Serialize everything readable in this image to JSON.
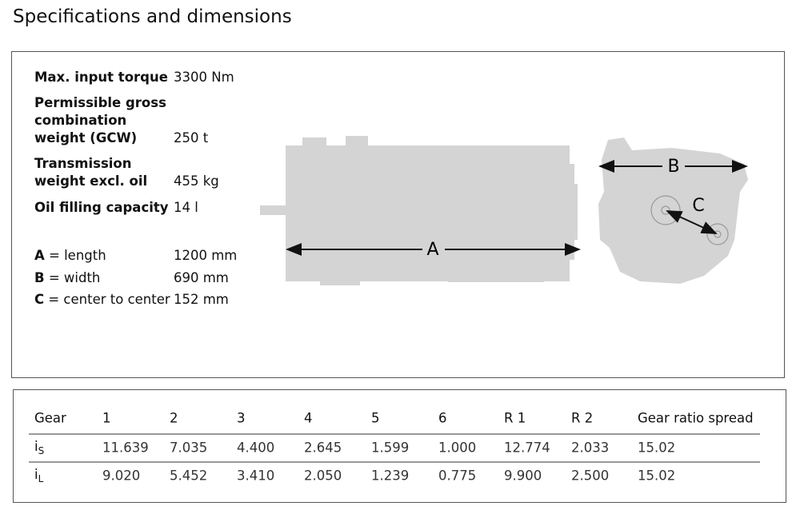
{
  "header": {
    "title": "Specifications and dimensions"
  },
  "specs": [
    {
      "label": "Max. input torque",
      "value": "3300 Nm"
    },
    {
      "label": "Permissible gross combination weight (GCW)",
      "value": "250 t"
    },
    {
      "label": "Transmission weight excl. oil",
      "value": "455 kg"
    },
    {
      "label": "Oil filling capacity",
      "value": "14 l"
    }
  ],
  "dimensions": [
    {
      "key": "A",
      "desc": "= length",
      "value": "1200 mm"
    },
    {
      "key": "B",
      "desc": "= width",
      "value": "690 mm"
    },
    {
      "key": "C",
      "desc": "= center to center",
      "value": "152 mm"
    }
  ],
  "diagram": {
    "labels": [
      "A",
      "B",
      "C"
    ]
  },
  "table": {
    "header": [
      "Gear",
      "1",
      "2",
      "3",
      "4",
      "5",
      "6",
      "R 1",
      "R 2",
      "Gear ratio spread"
    ],
    "rows": [
      {
        "label": {
          "main": "i",
          "sub": "S"
        },
        "cells": [
          "11.639",
          "7.035",
          "4.400",
          "2.645",
          "1.599",
          "1.000",
          "12.774",
          "2.033",
          "15.02"
        ]
      },
      {
        "label": {
          "main": "i",
          "sub": "L"
        },
        "cells": [
          "9.020",
          "5.452",
          "3.410",
          "2.050",
          "1.239",
          "0.775",
          "9.900",
          "2.500",
          "15.02"
        ]
      }
    ]
  }
}
